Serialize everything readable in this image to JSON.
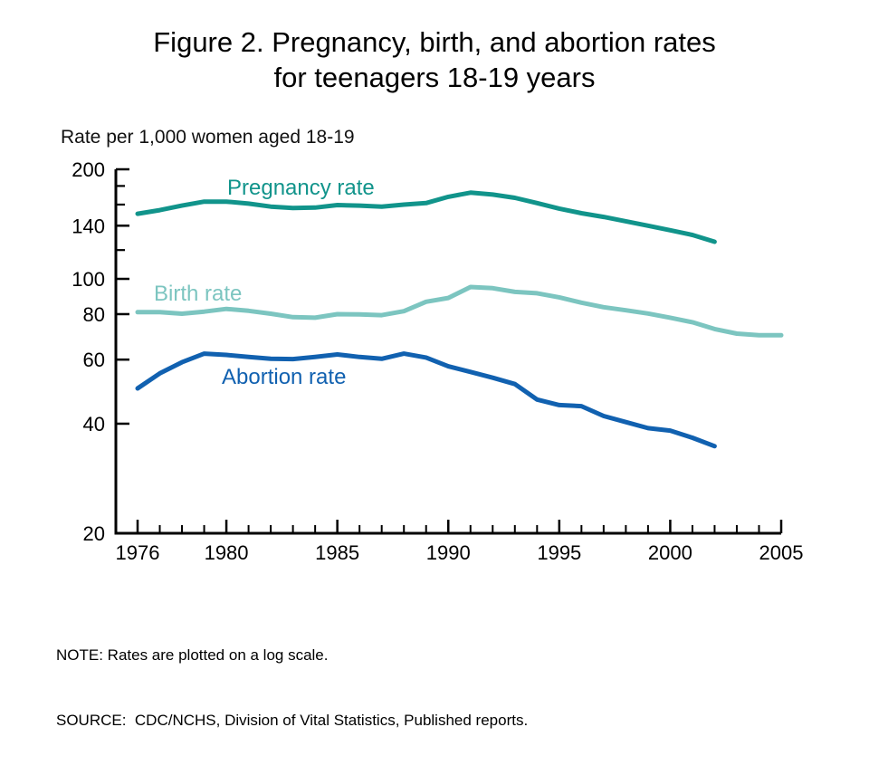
{
  "title": {
    "line1": "Figure 2. Pregnancy, birth, and abortion rates",
    "line2": "for teenagers 18-19 years"
  },
  "footer": {
    "note": "NOTE: Rates are plotted on a log scale.",
    "source": "SOURCE:  CDC/NCHS, Division of Vital Statistics, Published reports."
  },
  "chart_data": {
    "type": "line",
    "title": "Figure 2. Pregnancy, birth, and abortion rates for teenagers 18-19 years",
    "ylabel": "Rate per 1,000 women aged 18-19",
    "xlabel": "",
    "y_scale": "log",
    "ylim": [
      20,
      200
    ],
    "xlim": [
      1976,
      2005
    ],
    "grid": false,
    "legend": "inline-labels",
    "y_ticks_labeled": [
      200,
      140,
      100,
      80,
      60,
      40,
      20
    ],
    "y_ticks_unlabeled": [
      180,
      160,
      120
    ],
    "x_ticks_labeled": [
      1976,
      1980,
      1985,
      1990,
      1995,
      2000,
      2005
    ],
    "x_minor_tick_interval_years": 1,
    "axis_color": "#000000",
    "x": [
      1976,
      1977,
      1978,
      1979,
      1980,
      1981,
      1982,
      1983,
      1984,
      1985,
      1986,
      1987,
      1988,
      1989,
      1990,
      1991,
      1992,
      1993,
      1994,
      1995,
      1996,
      1997,
      1998,
      1999,
      2000,
      2001,
      2002,
      2003,
      2004,
      2005
    ],
    "series": [
      {
        "name": "Pregnancy rate",
        "color": "#11948b",
        "values": [
          151,
          154.5,
          159,
          163,
          163,
          161,
          158,
          156.5,
          157,
          159.5,
          159,
          158,
          160,
          161.5,
          168,
          172.5,
          170.5,
          167,
          161.5,
          156,
          151.5,
          148,
          144,
          140,
          136,
          132,
          126.5,
          null,
          null,
          null
        ]
      },
      {
        "name": "Birth rate",
        "color": "#7cc5c0",
        "values": [
          81,
          81,
          80.2,
          81.3,
          82.7,
          81.7,
          80.2,
          78.5,
          78.2,
          80,
          79.9,
          79.5,
          81.5,
          86.5,
          88.6,
          95,
          94.3,
          92.1,
          91.3,
          89,
          86,
          83.6,
          82,
          80.3,
          78.2,
          76,
          72.8,
          70.7,
          70,
          70
        ]
      },
      {
        "name": "Abortion rate",
        "color": "#1161b0",
        "values": [
          50,
          55,
          59,
          62.3,
          61.8,
          61,
          60.3,
          60.2,
          61,
          62,
          61,
          60.3,
          62.3,
          60.8,
          57.5,
          55.5,
          53.5,
          51.4,
          46.6,
          45,
          44.7,
          42,
          40.4,
          38.9,
          38.3,
          36.6,
          34.7,
          null,
          null,
          null
        ]
      }
    ]
  }
}
